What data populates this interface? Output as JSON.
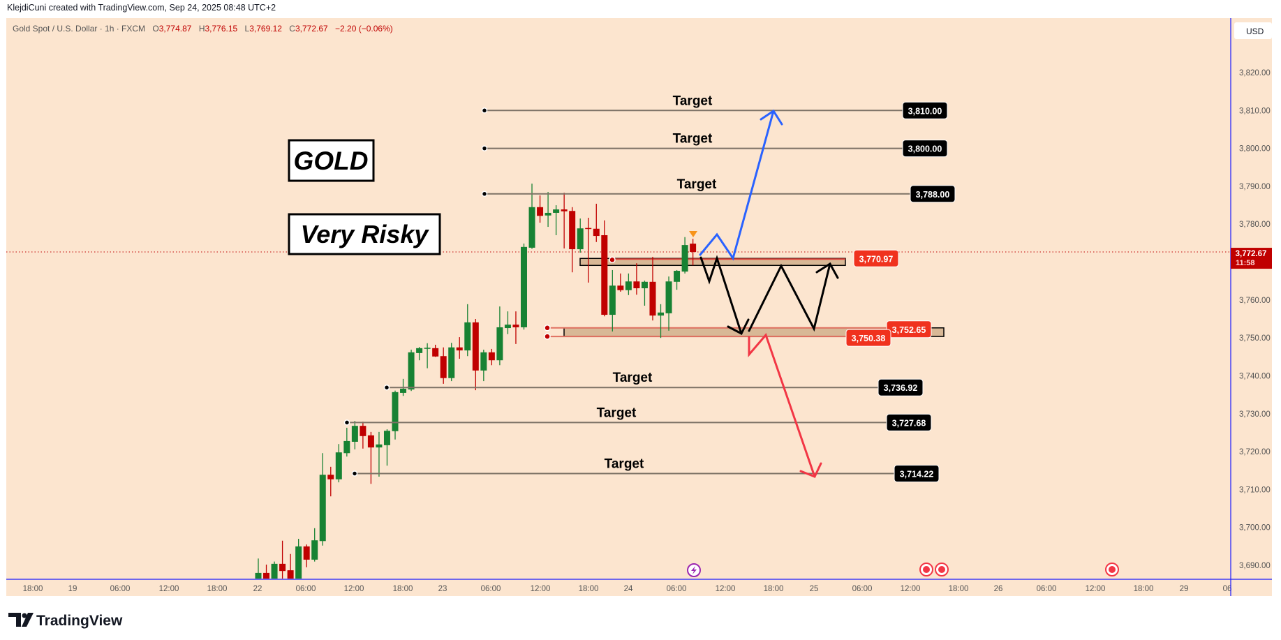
{
  "header": {
    "attribution": "KlejdiCuni created with TradingView.com, Sep 24, 2025 08:48 UTC+2",
    "symbol": "Gold Spot / U.S. Dollar · 1h · FXCM",
    "open_label": "O",
    "open": "3,774.87",
    "high_label": "H",
    "high": "3,776.15",
    "low_label": "L",
    "low": "3,769.12",
    "close_label": "C",
    "close": "3,772.67",
    "change": "−2.20 (−0.06%)"
  },
  "annotations": {
    "gold": "GOLD",
    "very_risky": "Very Risky"
  },
  "targets": [
    {
      "label": "Target",
      "price": 3810.0,
      "price_label": "3,810.00"
    },
    {
      "label": "Target",
      "price": 3800.0,
      "price_label": "3,800.00"
    },
    {
      "label": "Target",
      "price": 3788.0,
      "price_label": "3,788.00"
    },
    {
      "label": "Target",
      "price": 3736.92,
      "price_label": "3,736.92"
    },
    {
      "label": "Target",
      "price": 3727.68,
      "price_label": "3,727.68"
    },
    {
      "label": "Target",
      "price": 3714.22,
      "price_label": "3,714.22"
    }
  ],
  "zones": {
    "resistance": {
      "price": 3770.97,
      "price_label": "3,770.97"
    },
    "support_top": {
      "price": 3752.65,
      "price_label": "3,752.65"
    },
    "support_bottom": {
      "price": 3750.38,
      "price_label": "3,750.38"
    }
  },
  "axis": {
    "currency": "USD",
    "price_ticks": [
      "3,820.00",
      "3,810.00",
      "3,800.00",
      "3,790.00",
      "3,780.00",
      "3,760.00",
      "3,750.00",
      "3,740.00",
      "3,730.00",
      "3,720.00",
      "3,710.00",
      "3,700.00",
      "3,690.00"
    ],
    "price_tick_values": [
      3820,
      3810,
      3800,
      3790,
      3780,
      3760,
      3750,
      3740,
      3730,
      3720,
      3710,
      3700,
      3690
    ],
    "time_labels": [
      "18:00",
      "19",
      "06:00",
      "12:00",
      "18:00",
      "22",
      "06:00",
      "12:00",
      "18:00",
      "23",
      "06:00",
      "12:00",
      "18:00",
      "24",
      "06:00",
      "12:00",
      "18:00",
      "25",
      "06:00",
      "12:00",
      "18:00",
      "26",
      "06:00",
      "12:00",
      "18:00",
      "29",
      "06"
    ]
  },
  "current_price": {
    "value": "3,772.67",
    "price": 3772.67,
    "countdown": "11:58"
  },
  "logo": "TradingView",
  "colors": {
    "up": "#178233",
    "down": "#c00000",
    "background": "#fce5cf",
    "zone": "#d8b896",
    "bull_path": "#2962ff",
    "bear_path": "#f23645",
    "scenario_path": "#000000",
    "badge_red": "#f0321e"
  },
  "chart_data": {
    "type": "candlestick",
    "title": "Gold Spot / U.S. Dollar · 1h · FXCM",
    "ylim": [
      3685,
      3825
    ],
    "ohlc": [
      [
        3686.5,
        3691.8,
        3685.5,
        3688.0
      ],
      [
        3688.0,
        3690.2,
        3685.0,
        3686.3
      ],
      [
        3686.3,
        3691.0,
        3685.5,
        3690.4
      ],
      [
        3690.4,
        3696.5,
        3685.0,
        3688.5
      ],
      [
        3688.7,
        3693.0,
        3685.5,
        3686.3
      ],
      [
        3686.3,
        3697.0,
        3686.0,
        3695.0
      ],
      [
        3695.0,
        3695.5,
        3689.5,
        3691.5
      ],
      [
        3691.5,
        3699.8,
        3691.0,
        3696.6
      ],
      [
        3696.4,
        3719.6,
        3695.2,
        3713.9
      ],
      [
        3713.9,
        3716.0,
        3708.2,
        3712.7
      ],
      [
        3712.7,
        3722.0,
        3711.9,
        3719.8
      ],
      [
        3719.6,
        3726.3,
        3718.7,
        3722.8
      ],
      [
        3722.6,
        3728.1,
        3720.6,
        3726.8
      ],
      [
        3726.8,
        3727.9,
        3720.8,
        3724.1
      ],
      [
        3724.3,
        3725.2,
        3711.5,
        3721.1
      ],
      [
        3721.1,
        3725.2,
        3713.4,
        3721.9
      ],
      [
        3721.7,
        3725.9,
        3716.3,
        3725.5
      ],
      [
        3725.4,
        3736.1,
        3723.2,
        3735.7
      ],
      [
        3735.5,
        3739.2,
        3734.7,
        3736.6
      ],
      [
        3736.4,
        3746.9,
        3736.0,
        3746.2
      ],
      [
        3746.0,
        3747.6,
        3744.1,
        3747.3
      ],
      [
        3747.2,
        3748.6,
        3742.0,
        3747.4
      ],
      [
        3747.3,
        3748.2,
        3745.0,
        3745.1
      ],
      [
        3745.2,
        3747.5,
        3737.9,
        3739.4
      ],
      [
        3739.4,
        3748.7,
        3738.6,
        3747.5
      ],
      [
        3747.5,
        3750.2,
        3744.5,
        3746.7
      ],
      [
        3746.7,
        3758.9,
        3745.2,
        3754.1
      ],
      [
        3754.1,
        3755.0,
        3736.2,
        3741.4
      ],
      [
        3741.4,
        3746.9,
        3738.6,
        3746.2
      ],
      [
        3746.2,
        3747.1,
        3742.8,
        3744.1
      ],
      [
        3744.1,
        3758.3,
        3742.8,
        3752.8
      ],
      [
        3752.6,
        3757.0,
        3751.0,
        3753.5
      ],
      [
        3753.5,
        3757.0,
        3748.4,
        3752.8
      ],
      [
        3752.8,
        3774.9,
        3752.2,
        3774.0
      ],
      [
        3773.8,
        3790.7,
        3773.5,
        3784.5
      ],
      [
        3784.5,
        3787.6,
        3780.4,
        3782.2
      ],
      [
        3782.3,
        3788.5,
        3779.3,
        3783.0
      ],
      [
        3783.0,
        3785.0,
        3777.1,
        3783.9
      ],
      [
        3783.9,
        3788.3,
        3773.6,
        3783.4
      ],
      [
        3783.5,
        3784.5,
        3767.3,
        3773.4
      ],
      [
        3773.4,
        3781.5,
        3772.5,
        3778.9
      ],
      [
        3779.0,
        3781.7,
        3764.6,
        3778.8
      ],
      [
        3778.8,
        3785.4,
        3775.3,
        3776.9
      ],
      [
        3777.1,
        3781.0,
        3755.7,
        3756.1
      ],
      [
        3756.1,
        3767.9,
        3751.7,
        3763.8
      ],
      [
        3763.8,
        3767.0,
        3762.2,
        3762.6
      ],
      [
        3762.6,
        3767.0,
        3761.3,
        3764.9
      ],
      [
        3764.9,
        3769.7,
        3761.4,
        3763.1
      ],
      [
        3763.1,
        3765.1,
        3758.5,
        3764.8
      ],
      [
        3764.8,
        3771.4,
        3754.6,
        3755.9
      ],
      [
        3755.9,
        3758.9,
        3750.0,
        3756.7
      ],
      [
        3756.5,
        3766.2,
        3751.9,
        3764.9
      ],
      [
        3764.8,
        3767.9,
        3762.7,
        3767.7
      ],
      [
        3767.5,
        3776.6,
        3767.0,
        3774.5
      ],
      [
        3774.87,
        3776.15,
        3769.12,
        3772.67
      ]
    ]
  }
}
